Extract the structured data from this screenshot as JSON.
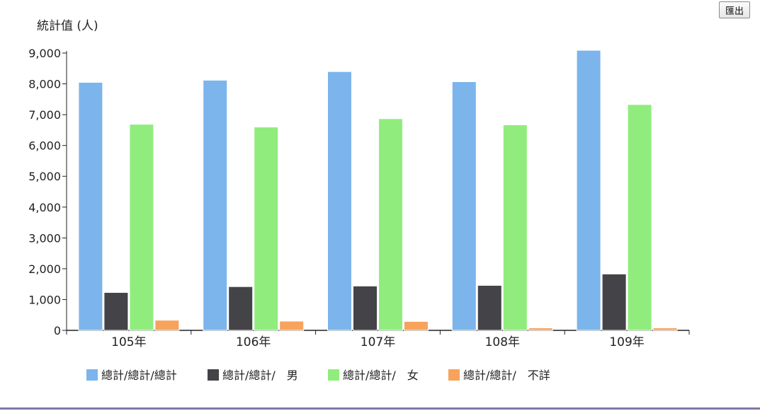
{
  "toolbar": {
    "export_label": "匯出"
  },
  "chart_data": {
    "type": "bar",
    "ylabel": "統計值 (人)",
    "categories": [
      "105年",
      "106年",
      "107年",
      "108年",
      "109年"
    ],
    "ylim": [
      0,
      9000
    ],
    "yticks": [
      "0",
      "1,000",
      "2,000",
      "3,000",
      "4,000",
      "5,000",
      "6,000",
      "7,000",
      "8,000",
      "9,000"
    ],
    "grid": false,
    "legend_position": "bottom-left",
    "series": [
      {
        "name": "總計/總計/總計",
        "color": "#7cb5ec",
        "values": [
          8050,
          8120,
          8400,
          8070,
          9090
        ]
      },
      {
        "name": "總計/總計/　男",
        "color": "#434348",
        "values": [
          1230,
          1420,
          1440,
          1460,
          1830
        ]
      },
      {
        "name": "總計/總計/　女",
        "color": "#90ed7d",
        "values": [
          6690,
          6600,
          6870,
          6670,
          7330
        ]
      },
      {
        "name": "總計/總計/　不詳",
        "color": "#f7a35c",
        "values": [
          330,
          300,
          290,
          80,
          80
        ]
      }
    ]
  }
}
